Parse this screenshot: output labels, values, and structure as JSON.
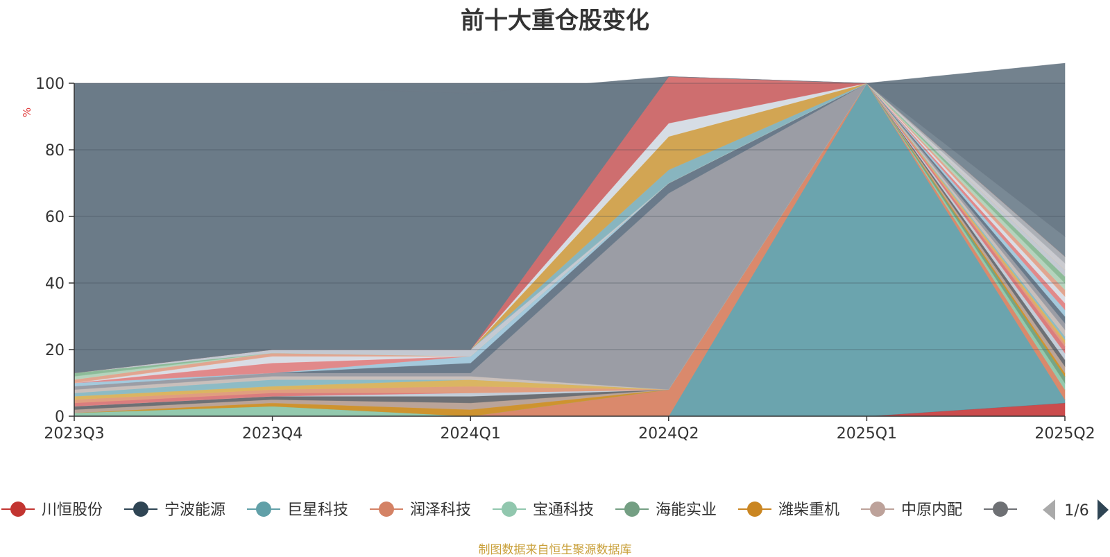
{
  "chart_data": {
    "type": "area",
    "stacked": true,
    "title": "前十大重仓股变化",
    "ylabel": "%",
    "ylim": [
      0,
      100
    ],
    "yticks": [
      0,
      20,
      40,
      60,
      80,
      100
    ],
    "grid": true,
    "legend_position": "bottom",
    "categories": [
      "2023Q3",
      "2023Q4",
      "2024Q1",
      "2024Q2",
      "2025Q1",
      "2025Q2"
    ],
    "series": [
      {
        "name": "川恒股份",
        "color": "#d14a4a",
        "values": [
          0,
          0,
          0,
          0,
          0,
          4
        ]
      },
      {
        "name": "宁波能源",
        "color": "#2e4358",
        "values": [
          0,
          0,
          0,
          0,
          0,
          0
        ]
      },
      {
        "name": "巨星科技",
        "color": "#6ba7b0",
        "values": [
          0,
          0,
          0,
          0,
          100,
          1
        ]
      },
      {
        "name": "润泽科技",
        "color": "#e08a6a",
        "values": [
          0,
          0,
          0,
          8,
          0,
          3
        ]
      },
      {
        "name": "宝通科技",
        "color": "#96cdb0",
        "values": [
          1,
          3,
          0,
          0,
          0,
          2
        ]
      },
      {
        "name": "海能实业",
        "color": "#76a886",
        "values": [
          0,
          0,
          0,
          0,
          0,
          2
        ]
      },
      {
        "name": "潍柴重机",
        "color": "#d4952a",
        "values": [
          0,
          1,
          2,
          0,
          0,
          1
        ]
      },
      {
        "name": "中原内配",
        "color": "#bfa79a",
        "values": [
          1,
          1,
          2,
          0,
          0,
          2
        ]
      },
      {
        "name": "",
        "color": "#6e7074",
        "values": [
          1,
          1,
          2,
          0,
          0,
          2
        ]
      },
      {
        "name": "",
        "color": "#c8d2dc",
        "values": [
          0,
          0,
          1,
          0,
          0,
          2
        ]
      },
      {
        "name": "",
        "color": "#e07d7d",
        "values": [
          1,
          1,
          0,
          0,
          0,
          2
        ]
      },
      {
        "name": "",
        "color": "#e6a080",
        "values": [
          1,
          1,
          2,
          0,
          0,
          1
        ]
      },
      {
        "name": "",
        "color": "#e0b860",
        "values": [
          1,
          1,
          2,
          0,
          0,
          1
        ]
      },
      {
        "name": "",
        "color": "#8fbfc8",
        "values": [
          1,
          2,
          0,
          0,
          0,
          1
        ]
      },
      {
        "name": "",
        "color": "#cfc3be",
        "values": [
          1,
          1,
          1,
          0,
          0,
          2
        ]
      },
      {
        "name": "",
        "color": "#9e9fa6",
        "values": [
          1,
          1,
          1,
          59,
          0,
          2
        ]
      },
      {
        "name": "",
        "color": "#6a7a8a",
        "values": [
          0,
          0,
          3,
          3,
          0,
          2
        ]
      },
      {
        "name": "",
        "color": "#a8cde0",
        "values": [
          1,
          0,
          2,
          0,
          0,
          2
        ]
      },
      {
        "name": "",
        "color": "#e88a8a",
        "values": [
          0,
          3,
          0,
          0,
          0,
          2
        ]
      },
      {
        "name": "",
        "color": "#dfe3ea",
        "values": [
          0,
          2,
          0,
          0,
          0,
          2
        ]
      },
      {
        "name": "",
        "color": "#e8a890",
        "values": [
          1,
          1,
          0,
          0,
          0,
          2
        ]
      },
      {
        "name": "",
        "color": "#b8d8c0",
        "values": [
          1,
          0,
          0,
          0,
          0,
          2
        ]
      },
      {
        "name": "",
        "color": "#8fbf9a",
        "values": [
          1,
          0,
          0,
          0,
          0,
          2
        ]
      },
      {
        "name": "",
        "color": "#c9cdd6",
        "values": [
          0,
          1,
          2,
          0,
          0,
          2
        ]
      },
      {
        "name": "",
        "color": "#e0aa60",
        "values": [
          0,
          0,
          0,
          0,
          0,
          0
        ]
      },
      {
        "name": "",
        "color": "#d0d0d4",
        "values": [
          0,
          0,
          0,
          0,
          0,
          2
        ]
      },
      {
        "name": "",
        "color": "#b0b3b8",
        "values": [
          0,
          0,
          0,
          0,
          0,
          2
        ]
      },
      {
        "name": "",
        "color": "#8ab8c2",
        "values": [
          0,
          0,
          0,
          4,
          0,
          0
        ]
      },
      {
        "name": "",
        "color": "#d8a850",
        "values": [
          0,
          0,
          0,
          10,
          0,
          0
        ]
      },
      {
        "name": "",
        "color": "#dce3ea",
        "values": [
          0,
          0,
          0,
          4,
          0,
          0
        ]
      },
      {
        "name": "",
        "color": "#d46e6e",
        "values": [
          0,
          0,
          0,
          14,
          0,
          0
        ]
      },
      {
        "name": "",
        "color": "#7a8a96",
        "values": [
          0,
          0,
          0,
          0,
          0,
          6
        ]
      },
      {
        "name": "",
        "color": "#6c7b88",
        "values": [
          86,
          79,
          77,
          0,
          0,
          52
        ]
      }
    ],
    "legend": {
      "items": [
        {
          "name": "川恒股份",
          "color": "#c23531"
        },
        {
          "name": "宁波能源",
          "color": "#2f4554"
        },
        {
          "name": "巨星科技",
          "color": "#61a0a8"
        },
        {
          "name": "润泽科技",
          "color": "#d48265"
        },
        {
          "name": "宝通科技",
          "color": "#91c7ae"
        },
        {
          "name": "海能实业",
          "color": "#749f83"
        },
        {
          "name": "潍柴重机",
          "color": "#ca8622"
        },
        {
          "name": "中原内配",
          "color": "#bda29a"
        },
        {
          "name": "",
          "color": "#6e7074"
        }
      ],
      "page_indicator": "1/6"
    }
  },
  "footer": {
    "source_note": "制图数据来自恒生聚源数据库"
  }
}
